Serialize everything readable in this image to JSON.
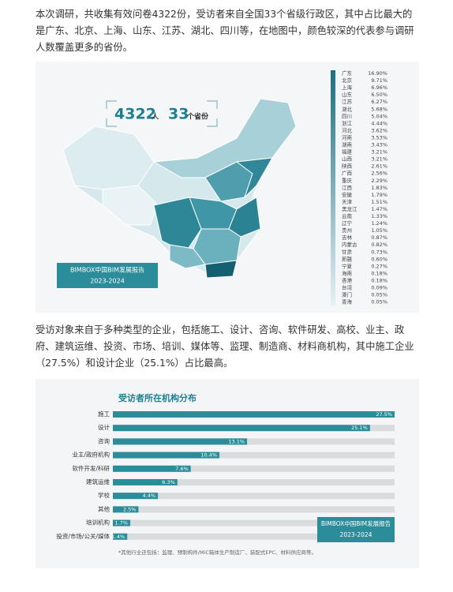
{
  "paragraphs": [
    "本次调研，共收集有效问卷4322份，受访者来自全国33个省级行政区，其中占比最大的是广东、北京、上海、山东、江苏、湖北、四川等，在地图中，颜色较深的代表参与调研人数覆盖更多的省份。",
    "受访对象来自于多种类型的企业，包括施工、设计、咨询、软件研发、高校、业主、政府、建筑运维、投资、市场、培训、媒体等、监理、制造商、材料商机构，其中施工企业（27.5%）和设计企业（25.1%）占比最高。"
  ],
  "map": {
    "stats": {
      "count": "4322",
      "count_unit": "人",
      "provinces": "33",
      "provinces_unit": "个省份"
    },
    "badge": [
      "BIMBOX中国BIM发展报告",
      "2023-2024"
    ],
    "legend": [
      [
        "广东",
        "16.90%"
      ],
      [
        "北京",
        "9.71%"
      ],
      [
        "上海",
        "6.96%"
      ],
      [
        "山东",
        "6.50%"
      ],
      [
        "江苏",
        "6.27%"
      ],
      [
        "湖北",
        "5.68%"
      ],
      [
        "四川",
        "5.04%"
      ],
      [
        "浙江",
        "4.44%"
      ],
      [
        "河北",
        "3.62%"
      ],
      [
        "河南",
        "3.53%"
      ],
      [
        "湖南",
        "3.43%"
      ],
      [
        "福建",
        "3.21%"
      ],
      [
        "山西",
        "3.21%"
      ],
      [
        "陕西",
        "2.61%"
      ],
      [
        "广西",
        "2.56%"
      ],
      [
        "重庆",
        "2.29%"
      ],
      [
        "江西",
        "1.83%"
      ],
      [
        "安徽",
        "1.79%"
      ],
      [
        "天津",
        "1.51%"
      ],
      [
        "黑龙江",
        "1.47%"
      ],
      [
        "云南",
        "1.33%"
      ],
      [
        "辽宁",
        "1.24%"
      ],
      [
        "贵州",
        "1.05%"
      ],
      [
        "吉林",
        "0.87%"
      ],
      [
        "内蒙古",
        "0.82%"
      ],
      [
        "甘肃",
        "0.73%"
      ],
      [
        "新疆",
        "0.60%"
      ],
      [
        "宁夏",
        "0.27%"
      ],
      [
        "海南",
        "0.18%"
      ],
      [
        "香港",
        "0.18%"
      ],
      [
        "台湾",
        "0.09%"
      ],
      [
        "澳门",
        "0.05%"
      ],
      [
        "青海",
        "0.05%"
      ]
    ]
  },
  "chart_data": {
    "type": "bar",
    "title": "受访者所在机构分布",
    "categories": [
      "施工",
      "设计",
      "咨询",
      "业主/政府机构",
      "软件开发/科研",
      "建筑运维",
      "学校",
      "其他",
      "培训机构",
      "投资/市场/公关/媒体"
    ],
    "values": [
      27.5,
      25.1,
      13.1,
      10.4,
      7.6,
      6.3,
      4.4,
      2.5,
      1.7,
      1.4
    ],
    "value_labels": [
      "27.5%",
      "25.1%",
      "13.1%",
      "10.4%",
      "7.6%",
      "6.3%",
      "4.4%",
      "2.5%",
      "1.7%",
      "1.4%"
    ],
    "color": "#2b8c9a",
    "badge": [
      "BIMBOX中国BIM发展报告",
      "2023-2024"
    ],
    "note": "*其他行业还包括：监理、预制构件/MiC箱体生产制造厂、装配式EPC、材料供应商等。"
  }
}
